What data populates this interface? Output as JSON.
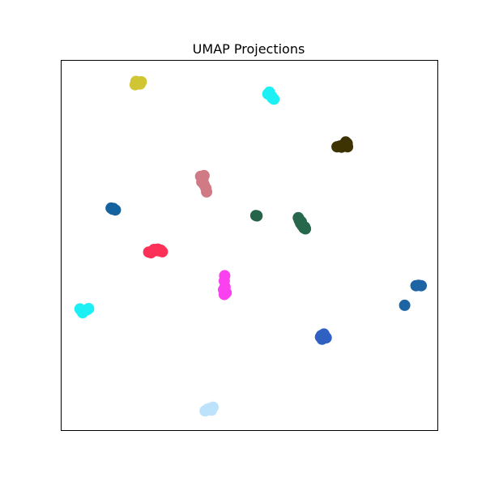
{
  "chart_data": {
    "type": "scatter",
    "title": "UMAP Projections",
    "xlabel": "",
    "ylabel": "",
    "xlim": [
      0,
      100
    ],
    "ylim": [
      0,
      100
    ],
    "axis_ticks": false,
    "grid": false,
    "legend": "none",
    "clusters": [
      {
        "color": "#d0c633",
        "points": [
          [
            20.0,
            93.9
          ],
          [
            20.6,
            94.1
          ],
          [
            21.2,
            94.3
          ],
          [
            19.6,
            93.5
          ],
          [
            20.9,
            93.7
          ],
          [
            19.8,
            94.4
          ]
        ]
      },
      {
        "color": "#1cf0f5",
        "points": [
          [
            55.3,
            91.5
          ],
          [
            55.8,
            90.5
          ],
          [
            56.5,
            89.6
          ],
          [
            54.9,
            91.0
          ],
          [
            56.1,
            89.9
          ]
        ]
      },
      {
        "color": "#3c3202",
        "points": [
          [
            73.3,
            76.7
          ],
          [
            74.1,
            76.9
          ],
          [
            74.8,
            77.1
          ],
          [
            75.4,
            77.3
          ],
          [
            76.0,
            77.6
          ],
          [
            75.6,
            78.0
          ],
          [
            74.5,
            76.6
          ],
          [
            76.1,
            76.7
          ]
        ]
      },
      {
        "color": "#d07a86",
        "points": [
          [
            37.0,
            68.7
          ],
          [
            37.9,
            68.9
          ],
          [
            37.6,
            67.7
          ],
          [
            37.9,
            66.5
          ],
          [
            38.4,
            65.5
          ],
          [
            38.6,
            64.5
          ],
          [
            37.3,
            67.2
          ]
        ]
      },
      {
        "color": "#14639f",
        "points": [
          [
            13.2,
            60.1
          ],
          [
            13.8,
            60.0
          ],
          [
            14.3,
            59.6
          ],
          [
            13.6,
            59.8
          ]
        ]
      },
      {
        "color": "#256448",
        "points": [
          [
            51.7,
            58.1
          ],
          [
            52.0,
            58.0
          ]
        ]
      },
      {
        "color": "#27684c",
        "points": [
          [
            63.0,
            57.5
          ],
          [
            63.3,
            56.7
          ],
          [
            63.6,
            56.0
          ],
          [
            64.0,
            55.4
          ],
          [
            64.5,
            54.7
          ],
          [
            64.9,
            54.5
          ],
          [
            63.2,
            57.1
          ],
          [
            64.3,
            55.2
          ],
          [
            63.8,
            56.4
          ],
          [
            64.7,
            55.0
          ]
        ]
      },
      {
        "color": "#fd3158",
        "points": [
          [
            23.2,
            48.2
          ],
          [
            24.2,
            48.4
          ],
          [
            25.1,
            48.6
          ],
          [
            26.0,
            48.5
          ],
          [
            26.8,
            48.3
          ],
          [
            24.6,
            48.9
          ],
          [
            25.6,
            49.0
          ],
          [
            23.8,
            48.0
          ],
          [
            26.4,
            48.7
          ]
        ]
      },
      {
        "color": "#fb40ef",
        "points": [
          [
            43.4,
            41.8
          ],
          [
            43.3,
            40.4
          ],
          [
            43.5,
            38.7
          ],
          [
            43.4,
            37.0
          ],
          [
            43.8,
            37.2
          ],
          [
            43.1,
            38.0
          ],
          [
            43.3,
            36.7
          ]
        ]
      },
      {
        "color": "#1d64a4",
        "points": [
          [
            94.3,
            39.1
          ],
          [
            95.0,
            39.2
          ],
          [
            95.7,
            39.1
          ],
          [
            91.3,
            33.8
          ]
        ]
      },
      {
        "color": "#1cf0f5",
        "points": [
          [
            4.9,
            32.8
          ],
          [
            5.6,
            31.8
          ],
          [
            6.3,
            32.4
          ],
          [
            7.2,
            32.9
          ],
          [
            5.3,
            32.3
          ],
          [
            6.8,
            32.6
          ]
        ]
      },
      {
        "color": "#3061c2",
        "points": [
          [
            69.1,
            25.6
          ],
          [
            69.8,
            26.0
          ],
          [
            70.4,
            25.0
          ],
          [
            69.3,
            24.6
          ],
          [
            70.1,
            25.4
          ],
          [
            68.9,
            25.2
          ]
        ]
      },
      {
        "color": "#bde2fb",
        "points": [
          [
            38.2,
            5.2
          ],
          [
            38.9,
            5.7
          ],
          [
            39.6,
            5.9
          ],
          [
            40.3,
            6.2
          ],
          [
            38.7,
            5.5
          ],
          [
            39.9,
            5.4
          ]
        ]
      }
    ]
  }
}
